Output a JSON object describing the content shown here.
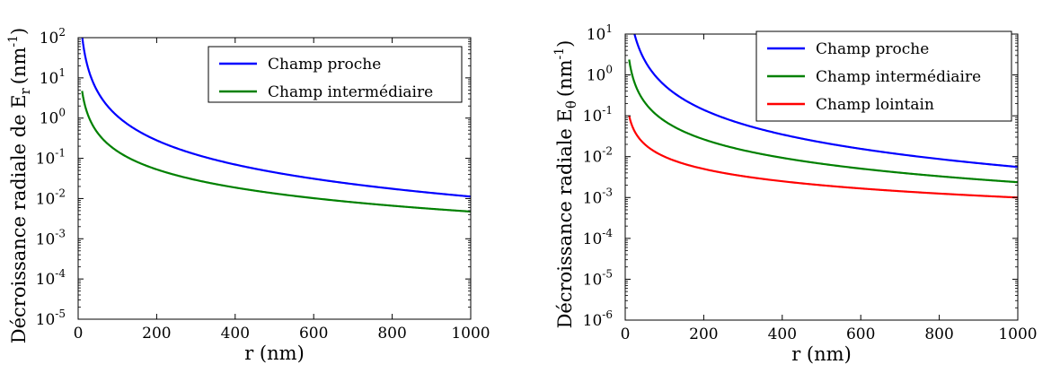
{
  "chart_data": [
    {
      "type": "line",
      "xlabel": "r (nm)",
      "ylabel": "Décroissance radiale de E",
      "ylabel_sub": "r",
      "ylabel_unit": "(nm",
      "ylabel_unit_sup": "-1",
      "ylabel_close": ")",
      "xlim": [
        0,
        1000
      ],
      "ylim": [
        1e-05,
        100
      ],
      "yscale": "log",
      "xticks": [
        0,
        200,
        400,
        600,
        800,
        1000
      ],
      "yticks_exp": [
        -5,
        -4,
        -3,
        -2,
        -1,
        0,
        1,
        2
      ],
      "legend_placement": "top-right",
      "series": [
        {
          "name": "Champ proche",
          "color": "#0000ff",
          "func": "near",
          "coef": 11200,
          "rmin": 10
        },
        {
          "name": "Champ intermédiaire",
          "color": "#008000",
          "func": "mid",
          "coef": 150,
          "rmin": 10
        }
      ]
    },
    {
      "type": "line",
      "xlabel": "r (nm)",
      "ylabel": "Décroissance radiale E",
      "ylabel_sub": "θ",
      "ylabel_unit": "(nm",
      "ylabel_unit_sup": "-1",
      "ylabel_close": ")",
      "xlim": [
        0,
        1000
      ],
      "ylim": [
        1e-06,
        10
      ],
      "yscale": "log",
      "xticks": [
        0,
        200,
        400,
        600,
        800,
        1000
      ],
      "yticks_exp": [
        -6,
        -5,
        -4,
        -3,
        -2,
        -1,
        0,
        1
      ],
      "legend_placement": "top-right",
      "series": [
        {
          "name": "Champ proche",
          "color": "#0000ff",
          "func": "near",
          "coef": 5600,
          "rmin": 10
        },
        {
          "name": "Champ intermédiaire",
          "color": "#008000",
          "func": "mid",
          "coef": 75,
          "rmin": 10
        },
        {
          "name": "Champ lointain",
          "color": "#ff0000",
          "func": "far",
          "coef": 1,
          "rmin": 10
        }
      ]
    }
  ]
}
